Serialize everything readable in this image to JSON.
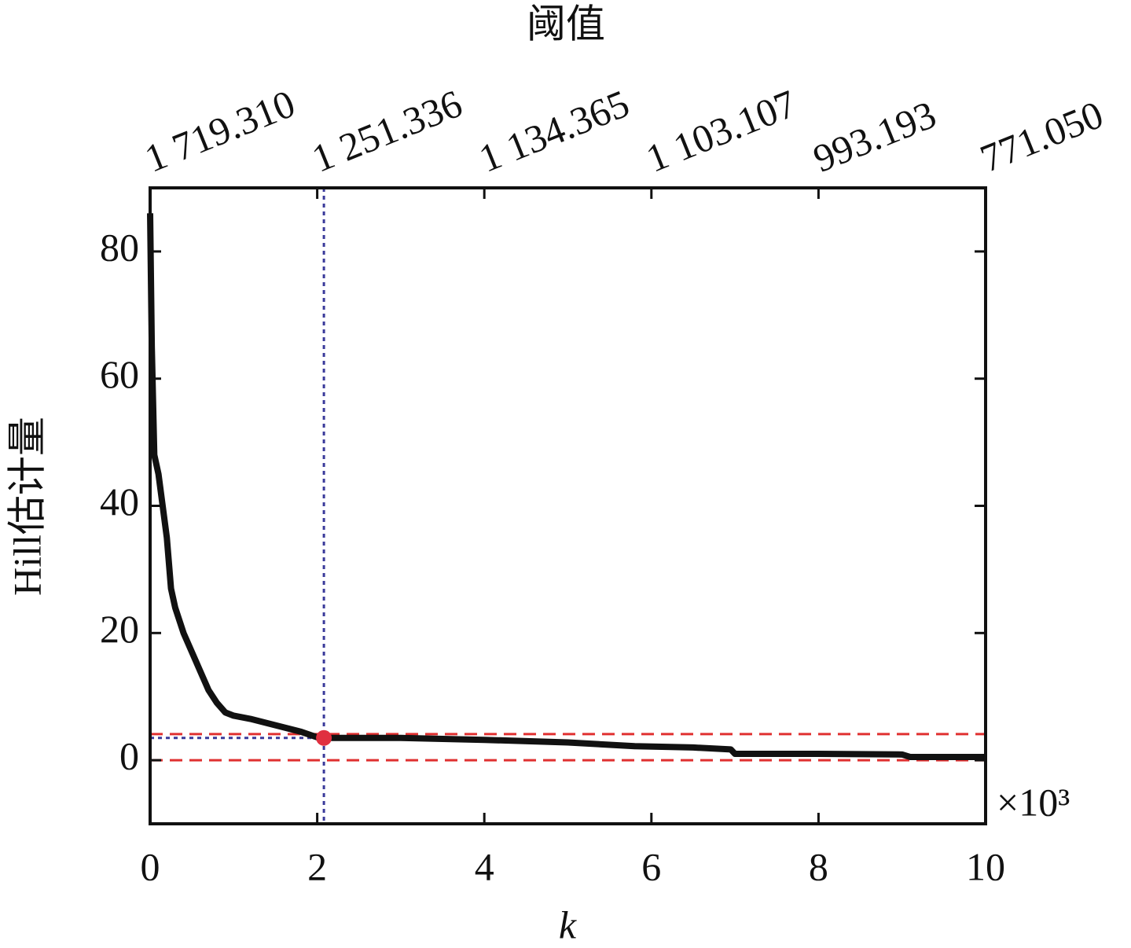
{
  "chart_data": {
    "type": "line",
    "x_label": "k",
    "y_label": "Hill估计量",
    "x_multiplier": "×10³",
    "xlim": [
      0,
      10
    ],
    "xticks": [
      0,
      2,
      4,
      6,
      8,
      10
    ],
    "ylim": [
      -10,
      90
    ],
    "yticks": [
      0,
      20,
      40,
      60,
      80
    ],
    "top_axis": {
      "label": "阈值",
      "ticks": [
        {
          "value": 0,
          "label": "1 719.310"
        },
        {
          "value": 2,
          "label": "1 251.336"
        },
        {
          "value": 4,
          "label": "1 134.365"
        },
        {
          "value": 6,
          "label": "1 103.107"
        },
        {
          "value": 8,
          "label": "993.193"
        },
        {
          "value": 10,
          "label": "771.050"
        }
      ]
    },
    "series": [
      {
        "color": "#111111",
        "x": [
          0.0,
          0.02,
          0.05,
          0.1,
          0.15,
          0.2,
          0.25,
          0.3,
          0.4,
          0.5,
          0.6,
          0.7,
          0.8,
          0.9,
          1.0,
          1.2,
          1.5,
          1.8,
          2.0,
          2.1,
          3.0,
          4.0,
          5.0,
          5.8,
          6.5,
          6.95,
          7.0,
          8.0,
          9.0,
          9.1,
          10.0
        ],
        "values": [
          86,
          65,
          48,
          45,
          40,
          35,
          27,
          24,
          20,
          17,
          14,
          11,
          9,
          7.5,
          7,
          6.5,
          5.5,
          4.5,
          3.6,
          3.5,
          3.5,
          3.2,
          2.8,
          2.2,
          2.0,
          1.7,
          1.0,
          1.0,
          0.9,
          0.5,
          0.5
        ]
      }
    ],
    "reference_lines": {
      "color": "#e03030",
      "values": [
        4.1,
        0
      ]
    },
    "selected_point": {
      "x": 2.08,
      "y": 3.5,
      "color": "#e03040",
      "guide_color": "#3a3a9a"
    }
  }
}
